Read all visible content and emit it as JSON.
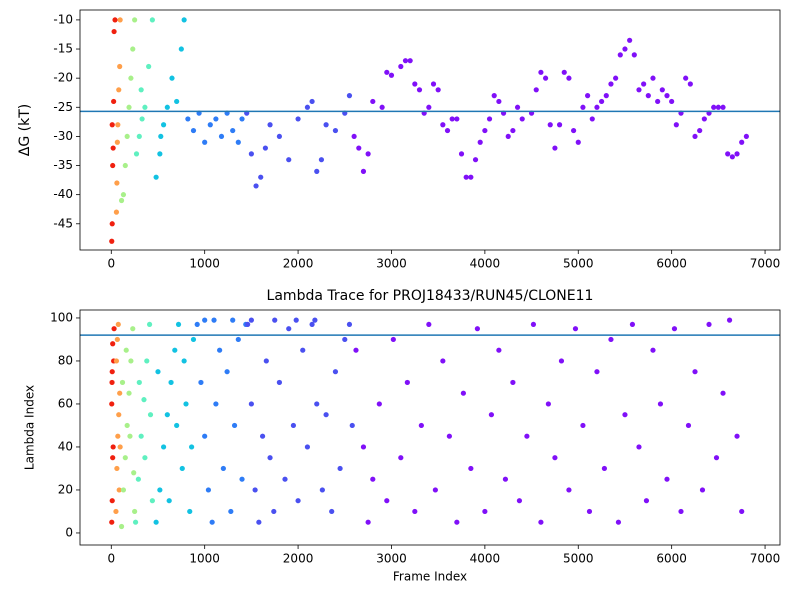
{
  "chart_data": [
    {
      "type": "scatter",
      "ylabel": "ΔG (kT)",
      "xlim": [
        -335,
        7160
      ],
      "ylim": [
        -49.5,
        -8.3
      ],
      "xticks": [
        0,
        1000,
        2000,
        3000,
        4000,
        5000,
        6000,
        7000
      ],
      "yticks": [
        -45,
        -40,
        -35,
        -30,
        -25,
        -20,
        -15,
        -10
      ],
      "hline": -25.7,
      "hline_color": "#1f77b4",
      "series": [
        {
          "color": "#f0200f",
          "x": [
            5,
            10,
            15,
            20,
            25,
            30,
            40,
            10
          ],
          "values": [
            -48,
            -45,
            -35,
            -32,
            -24,
            -12,
            -10,
            -28
          ]
        },
        {
          "color": "#ff9f4a",
          "x": [
            55,
            60,
            70,
            80,
            90,
            95,
            65
          ],
          "values": [
            -43,
            -38,
            -28,
            -22,
            -18,
            -10,
            -31
          ]
        },
        {
          "color": "#a8f08a",
          "x": [
            110,
            130,
            150,
            170,
            190,
            210,
            230,
            250
          ],
          "values": [
            -41,
            -40,
            -35,
            -30,
            -25,
            -20,
            -15,
            -10
          ]
        },
        {
          "color": "#5ff0c0",
          "x": [
            270,
            300,
            330,
            360,
            400,
            440,
            320
          ],
          "values": [
            -33,
            -30,
            -27,
            -25,
            -18,
            -10,
            -22
          ]
        },
        {
          "color": "#12c2e2",
          "x": [
            480,
            520,
            560,
            600,
            650,
            700,
            750,
            780,
            530
          ],
          "values": [
            -37,
            -33,
            -28,
            -25,
            -20,
            -24,
            -15,
            -10,
            -30
          ]
        },
        {
          "color": "#2e7cf6",
          "x": [
            820,
            880,
            940,
            1000,
            1060,
            1120,
            1180,
            1240,
            1300,
            1360,
            1400
          ],
          "values": [
            -27,
            -29,
            -26,
            -31,
            -28,
            -27,
            -30,
            -26,
            -29,
            -31,
            -27
          ]
        },
        {
          "color": "#4a50f0",
          "x": [
            1450,
            1500,
            1550,
            1600,
            1650,
            1700,
            1800,
            1900,
            2000,
            2100,
            2150,
            2200,
            2250,
            2300,
            2400,
            2500,
            2550
          ],
          "values": [
            -26,
            -33,
            -38.5,
            -37,
            -32,
            -28,
            -30,
            -34,
            -27,
            -25,
            -24,
            -36,
            -34,
            -28,
            -29,
            -26,
            -23
          ]
        },
        {
          "color": "#8010f8",
          "x": [
            2600,
            2650,
            2700,
            2750,
            2800,
            2900,
            2950,
            3000,
            3100,
            3150,
            3200,
            3250,
            3300,
            3350,
            3400,
            3450,
            3500,
            3550,
            3600,
            3650,
            3700,
            3750,
            3800,
            3850,
            3900,
            3950,
            4000,
            4050,
            4100,
            4150,
            4200,
            4250,
            4300,
            4350,
            4400,
            4500,
            4550,
            4600,
            4650,
            4700,
            4750,
            4800,
            4850,
            4900,
            4950,
            5000,
            5050,
            5100,
            5150,
            5200,
            5250,
            5300,
            5350,
            5400,
            5450,
            5500,
            5550,
            5600,
            5650,
            5700,
            5750,
            5800,
            5850,
            5900,
            5950,
            6000,
            6050,
            6100,
            6150,
            6200,
            6250,
            6300,
            6350,
            6400,
            6450,
            6500,
            6550,
            6600,
            6650,
            6700,
            6750,
            6800
          ],
          "values": [
            -30,
            -32,
            -36,
            -33,
            -24,
            -25,
            -19,
            -19.5,
            -18,
            -17,
            -17,
            -21,
            -22,
            -26,
            -25,
            -21,
            -22,
            -28,
            -29,
            -27,
            -27,
            -33,
            -37,
            -37,
            -34,
            -31,
            -29,
            -27,
            -23,
            -24,
            -26,
            -30,
            -29,
            -25,
            -27,
            -26,
            -22,
            -19,
            -20,
            -28,
            -32,
            -28,
            -19,
            -20,
            -29,
            -31,
            -25,
            -23,
            -27,
            -25,
            -24,
            -23,
            -21,
            -20,
            -16,
            -15,
            -13.5,
            -16,
            -22,
            -21,
            -23,
            -20,
            -24,
            -22,
            -23,
            -24,
            -28,
            -26,
            -20,
            -21,
            -30,
            -29,
            -27,
            -26,
            -25,
            -25,
            -25,
            -33,
            -33.5,
            -33,
            -31,
            -30
          ]
        }
      ]
    },
    {
      "type": "scatter",
      "title": "Lambda Trace for PROJ18433/RUN45/CLONE11",
      "xlabel": "Frame Index",
      "ylabel": "Lambda Index",
      "xlim": [
        -335,
        7160
      ],
      "ylim": [
        -5.6,
        103.7
      ],
      "xticks": [
        0,
        1000,
        2000,
        3000,
        4000,
        5000,
        6000,
        7000
      ],
      "yticks": [
        0,
        20,
        40,
        60,
        80,
        100
      ],
      "hline": 92,
      "hline_color": "#1f77b4",
      "series": [
        {
          "color": "#f0200f",
          "x": [
            5,
            10,
            15,
            20,
            5,
            10,
            25,
            15,
            30,
            8
          ],
          "values": [
            5,
            15,
            35,
            40,
            60,
            75,
            80,
            88,
            95,
            70
          ]
        },
        {
          "color": "#ff9f4a",
          "x": [
            50,
            60,
            70,
            80,
            90,
            55,
            65,
            75,
            85,
            95
          ],
          "values": [
            10,
            30,
            45,
            55,
            65,
            80,
            90,
            97,
            20,
            40
          ]
        },
        {
          "color": "#a8f08a",
          "x": [
            110,
            130,
            150,
            170,
            190,
            210,
            230,
            250,
            120,
            160,
            200,
            240
          ],
          "values": [
            3,
            20,
            35,
            50,
            65,
            80,
            95,
            10,
            70,
            85,
            45,
            28
          ]
        },
        {
          "color": "#5ff0c0",
          "x": [
            260,
            290,
            320,
            350,
            380,
            410,
            440,
            300,
            360,
            420
          ],
          "values": [
            5,
            25,
            45,
            62,
            80,
            97,
            15,
            70,
            35,
            55
          ]
        },
        {
          "color": "#12c2e2",
          "x": [
            480,
            520,
            560,
            600,
            640,
            680,
            720,
            760,
            800,
            840,
            880,
            500,
            620,
            700,
            780,
            860
          ],
          "values": [
            5,
            20,
            40,
            55,
            70,
            85,
            97,
            30,
            60,
            10,
            90,
            75,
            15,
            50,
            80,
            40
          ]
        },
        {
          "color": "#2e7cf6",
          "x": [
            920,
            960,
            1000,
            1040,
            1080,
            1120,
            1160,
            1200,
            1240,
            1280,
            1320,
            1360,
            1400,
            1440,
            1000,
            1100,
            1300
          ],
          "values": [
            97,
            70,
            45,
            20,
            5,
            60,
            85,
            30,
            75,
            10,
            50,
            90,
            25,
            97,
            99,
            99,
            99
          ]
        },
        {
          "color": "#4a50f0",
          "x": [
            1460,
            1500,
            1540,
            1580,
            1620,
            1660,
            1700,
            1740,
            1800,
            1860,
            1900,
            1950,
            2000,
            2050,
            2100,
            2150,
            2200,
            2260,
            2300,
            2360,
            2400,
            2450,
            2500,
            2550,
            2580,
            1500,
            1750,
            1980,
            2180
          ],
          "values": [
            97,
            60,
            20,
            5,
            45,
            80,
            35,
            10,
            70,
            25,
            95,
            50,
            15,
            85,
            40,
            97,
            60,
            20,
            55,
            10,
            75,
            30,
            90,
            97,
            50,
            99,
            99,
            99,
            99
          ]
        },
        {
          "color": "#8010f8",
          "x": [
            2620,
            2700,
            2750,
            2800,
            2870,
            2950,
            3020,
            3100,
            3170,
            3250,
            3320,
            3400,
            3470,
            3550,
            3620,
            3700,
            3770,
            3850,
            3920,
            4000,
            4070,
            4150,
            4220,
            4300,
            4370,
            4450,
            4520,
            4600,
            4680,
            4750,
            4820,
            4900,
            4970,
            5050,
            5120,
            5200,
            5280,
            5350,
            5430,
            5500,
            5580,
            5650,
            5730,
            5800,
            5880,
            5950,
            6030,
            6100,
            6180,
            6250,
            6330,
            6400,
            6480,
            6550,
            6620,
            6700,
            6750
          ],
          "values": [
            85,
            40,
            5,
            25,
            60,
            15,
            90,
            35,
            70,
            10,
            50,
            97,
            20,
            80,
            45,
            5,
            65,
            30,
            95,
            10,
            55,
            85,
            25,
            70,
            15,
            45,
            97,
            5,
            60,
            35,
            80,
            20,
            95,
            50,
            10,
            75,
            30,
            90,
            5,
            55,
            97,
            40,
            15,
            85,
            60,
            25,
            95,
            10,
            50,
            75,
            20,
            97,
            35,
            65,
            99,
            45,
            10
          ]
        }
      ]
    }
  ]
}
